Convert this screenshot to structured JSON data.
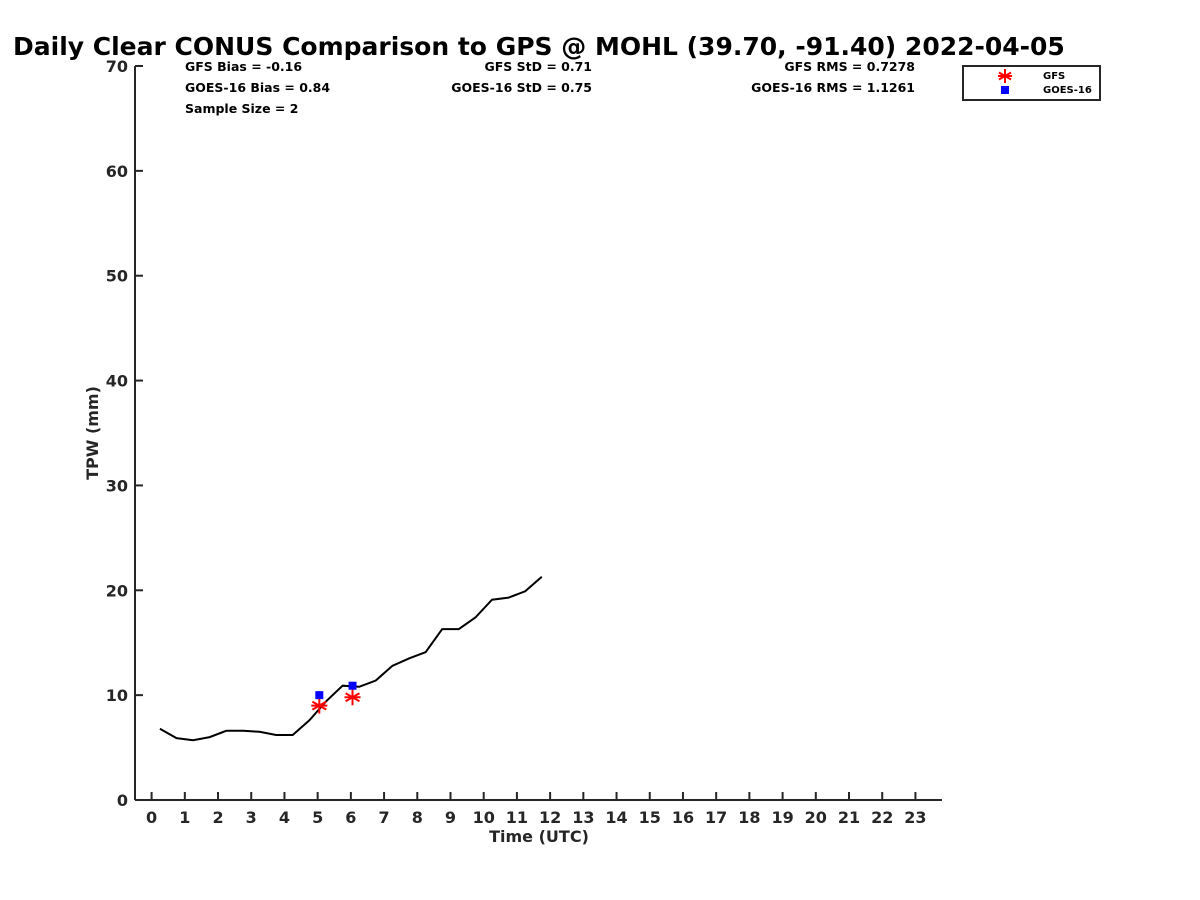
{
  "chart_data": {
    "type": "line",
    "title": "Daily Clear CONUS Comparison to GPS @ MOHL (39.70, -91.40) 2022-04-05",
    "xlabel": "Time (UTC)",
    "ylabel": "TPW (mm)",
    "xlim": [
      -0.5,
      23.8
    ],
    "ylim": [
      0,
      70
    ],
    "xticks": [
      0,
      1,
      2,
      3,
      4,
      5,
      6,
      7,
      8,
      9,
      10,
      11,
      12,
      13,
      14,
      15,
      16,
      17,
      18,
      19,
      20,
      21,
      22,
      23
    ],
    "yticks": [
      0,
      10,
      20,
      30,
      40,
      50,
      60,
      70
    ],
    "grid": false,
    "legend_position": "top-right, outside plot",
    "stats": {
      "gfs_bias": "GFS Bias = -0.16",
      "goes_bias": "GOES-16 Bias = 0.84",
      "sample_size": "Sample Size = 2",
      "gfs_std": "GFS StD = 0.71",
      "goes_std": "GOES-16 StD = 0.75",
      "gfs_rms": "GFS RMS = 0.7278",
      "goes_rms": "GOES-16 RMS = 1.1261"
    },
    "series": [
      {
        "kind": "line",
        "color": "#000000",
        "x": [
          0.25,
          0.75,
          1.25,
          1.75,
          2.25,
          2.75,
          3.25,
          3.75,
          4.25,
          4.75,
          5.25,
          5.75,
          6.25,
          6.75,
          7.25,
          7.75,
          8.25,
          8.75,
          9.25,
          9.75,
          10.25,
          10.75,
          11.25,
          11.75
        ],
        "y": [
          6.8,
          5.9,
          5.7,
          6.0,
          6.6,
          6.6,
          6.5,
          6.2,
          6.2,
          7.6,
          9.4,
          10.9,
          10.8,
          11.4,
          12.8,
          13.5,
          14.1,
          16.3,
          16.3,
          17.4,
          19.1,
          19.3,
          19.9,
          21.3
        ]
      },
      {
        "name": "GFS",
        "kind": "scatter",
        "marker": "asterisk",
        "color": "#ff0000",
        "x": [
          5.05,
          6.05
        ],
        "y": [
          9.0,
          9.8
        ]
      },
      {
        "name": "GOES-16",
        "kind": "scatter",
        "marker": "square",
        "color": "#0000ff",
        "x": [
          5.05,
          6.05
        ],
        "y": [
          10.0,
          10.9
        ]
      }
    ]
  }
}
